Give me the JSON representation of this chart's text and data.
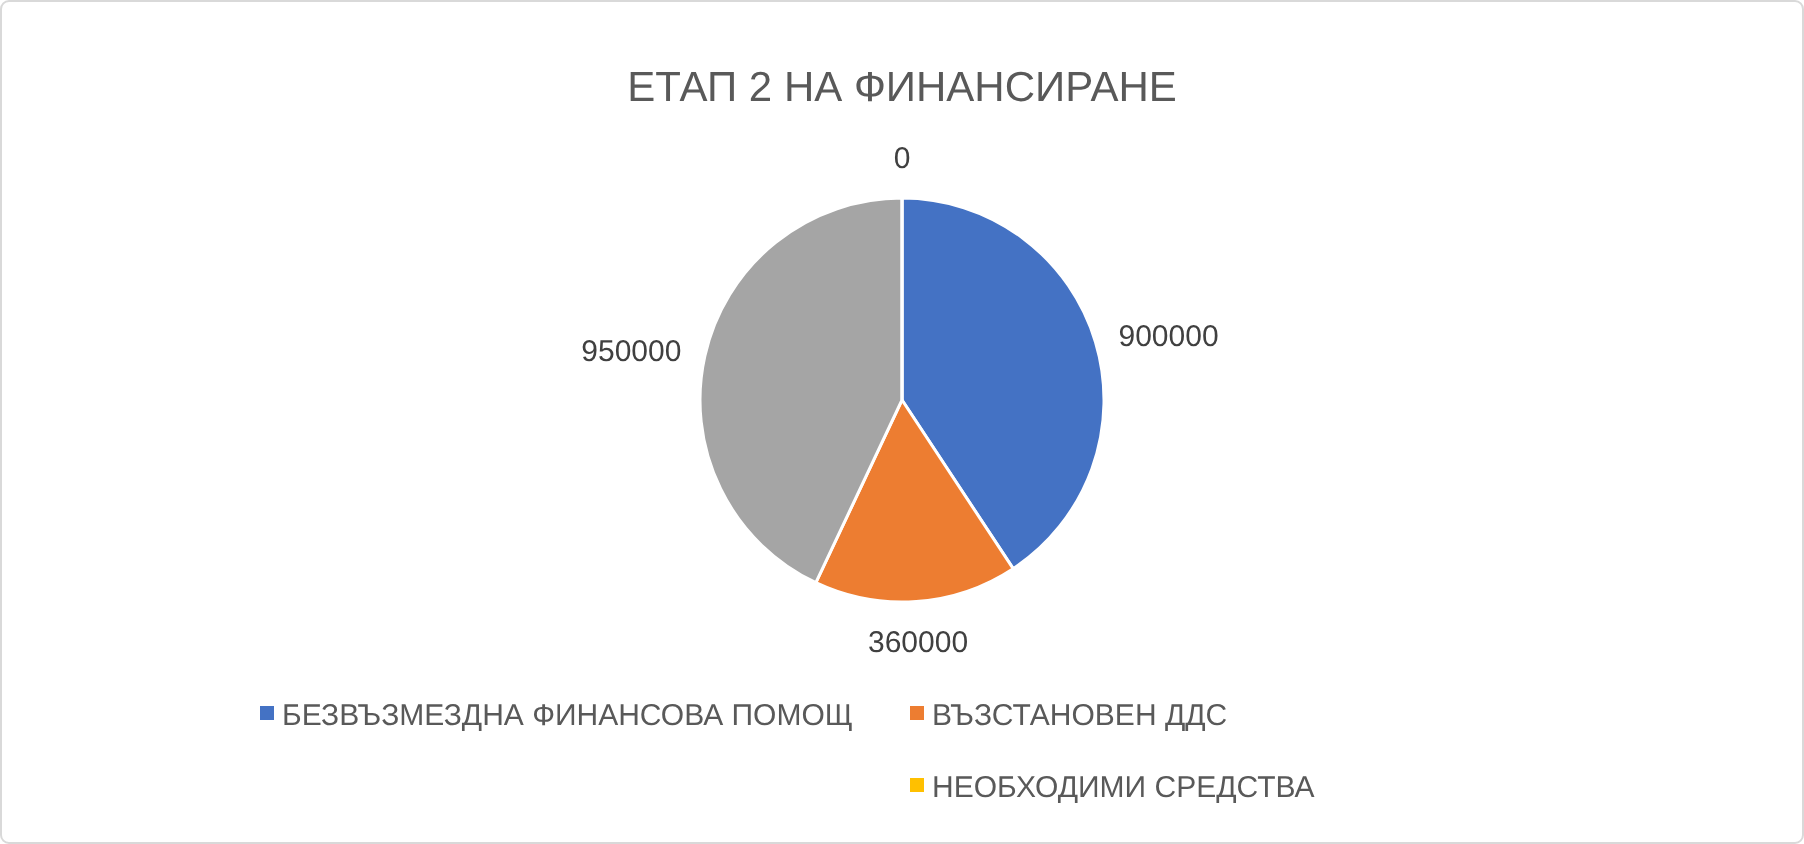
{
  "chart_data": {
    "type": "pie",
    "title": "ЕТАП 2 НА ФИНАНСИРАНЕ",
    "categories": [
      "БЕЗВЪЗМЕЗДНА ФИНАНСОВА ПОМОЩ",
      "ВЪЗСТАНОВЕН ДДС",
      null,
      "НЕОБХОДИМИ СРЕДСТВА"
    ],
    "values": [
      900000,
      360000,
      950000,
      0
    ],
    "colors": [
      "#4472c4",
      "#ed7d31",
      "#a5a5a5",
      "#ffc000"
    ],
    "value_labels": [
      "900000",
      "360000",
      "950000",
      "0"
    ],
    "legend": "bottom"
  }
}
